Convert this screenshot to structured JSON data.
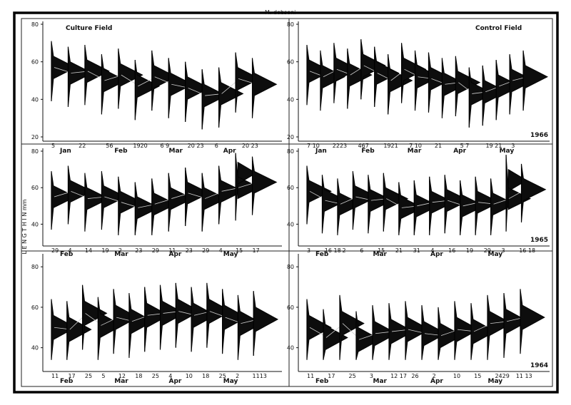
{
  "figure": {
    "title": "M. dobsoni",
    "field_labels": [
      "Culture Field",
      "Control Field"
    ],
    "y_axis_label": "L E N G T H   I N   mm"
  },
  "chart_data": [
    {
      "type": "area",
      "panel": "culture-1966",
      "heading": "Culture Field",
      "year": "",
      "ylim": [
        20,
        80
      ],
      "y_ticks": [
        20,
        40,
        60,
        80
      ],
      "date_labels": [
        "5",
        "22",
        "56",
        "1920",
        "6 9",
        "20 23",
        "6",
        "20 23"
      ],
      "months": [
        "Jan",
        "Feb",
        "Mar",
        "Apr"
      ],
      "series": [
        {
          "x": "5 Jan",
          "modes": [
            57
          ]
        },
        {
          "x": "22 Jan",
          "modes": [
            54
          ]
        },
        {
          "x": "5 Feb",
          "modes": [
            55
          ]
        },
        {
          "x": "6 Feb",
          "modes": [
            50
          ]
        },
        {
          "x": "19 Feb",
          "modes": [
            53
          ]
        },
        {
          "x": "20 Feb",
          "modes": [
            47
          ]
        },
        {
          "x": "6 Mar",
          "modes": [
            52
          ]
        },
        {
          "x": "9 Mar",
          "modes": [
            48
          ]
        },
        {
          "x": "20 Mar",
          "modes": [
            46
          ]
        },
        {
          "x": "23 Mar",
          "modes": [
            42
          ]
        },
        {
          "x": "6 Apr",
          "modes": [
            43
          ]
        },
        {
          "x": "20 Apr",
          "modes": [
            51
          ]
        },
        {
          "x": "23 Apr",
          "modes": [
            48
          ]
        }
      ]
    },
    {
      "type": "area",
      "panel": "control-1966",
      "heading": "Control Field",
      "year": "1966",
      "ylim": [
        20,
        80
      ],
      "y_ticks": [
        20,
        40,
        60,
        80
      ],
      "date_labels": [
        "7 10",
        "2223",
        "467",
        "1921",
        "7 10",
        "21",
        "5 7",
        "19 21",
        "3"
      ],
      "months": [
        "Jan",
        "Feb",
        "Mar",
        "Apr",
        "May"
      ],
      "series": [
        {
          "x": "7 Jan",
          "modes": [
            55
          ]
        },
        {
          "x": "10 Jan",
          "modes": [
            52
          ]
        },
        {
          "x": "22 Jan",
          "modes": [
            56
          ]
        },
        {
          "x": "23 Jan",
          "modes": [
            53
          ]
        },
        {
          "x": "4 Feb",
          "modes": [
            58
          ]
        },
        {
          "x": "6 Feb",
          "modes": [
            54
          ]
        },
        {
          "x": "7 Feb",
          "modes": [
            50
          ]
        },
        {
          "x": "19 Feb",
          "modes": [
            56
          ]
        },
        {
          "x": "21 Feb",
          "modes": [
            52
          ]
        },
        {
          "x": "7 Mar",
          "modes": [
            51
          ]
        },
        {
          "x": "10 Mar",
          "modes": [
            48
          ]
        },
        {
          "x": "21 Mar",
          "modes": [
            49
          ]
        },
        {
          "x": "5 Apr",
          "modes": [
            43
          ]
        },
        {
          "x": "7 Apr",
          "modes": [
            44
          ]
        },
        {
          "x": "19 Apr",
          "modes": [
            47
          ]
        },
        {
          "x": "21 Apr",
          "modes": [
            50
          ]
        },
        {
          "x": "3 May",
          "modes": [
            52
          ]
        }
      ]
    },
    {
      "type": "area",
      "panel": "culture-1965",
      "heading": "",
      "year": "",
      "ylim": [
        30,
        80
      ],
      "y_ticks": [
        40,
        60,
        80
      ],
      "date_labels": [
        "29",
        "4",
        "14",
        "19",
        "2",
        "23",
        "29",
        "11",
        "23",
        "29",
        "4",
        "15",
        "17"
      ],
      "months": [
        "Feb",
        "Mar",
        "Apr",
        "May"
      ],
      "series": [
        {
          "x": "29 Jan",
          "modes": [
            55
          ]
        },
        {
          "x": "4 Feb",
          "modes": [
            58
          ]
        },
        {
          "x": "14 Feb",
          "modes": [
            54
          ]
        },
        {
          "x": "19 Feb",
          "modes": [
            55
          ]
        },
        {
          "x": "2 Mar",
          "modes": [
            52
          ]
        },
        {
          "x": "23 Mar",
          "modes": [
            49
          ]
        },
        {
          "x": "29 Mar",
          "modes": [
            51
          ]
        },
        {
          "x": "11 Apr",
          "modes": [
            54
          ]
        },
        {
          "x": "23 Apr",
          "modes": [
            57
          ]
        },
        {
          "x": "29 Apr",
          "modes": [
            54
          ]
        },
        {
          "x": "4 May",
          "modes": [
            58
          ]
        },
        {
          "x": "15 May",
          "modes": [
            60,
            68
          ]
        },
        {
          "x": "17 May",
          "modes": [
            63
          ]
        }
      ]
    },
    {
      "type": "area",
      "panel": "control-1965",
      "heading": "",
      "year": "1965",
      "ylim": [
        30,
        80
      ],
      "y_ticks": [
        40,
        60,
        80
      ],
      "date_labels": [
        "3",
        "16 18",
        "2",
        "6",
        "15",
        "21",
        "31",
        "4",
        "16",
        "19",
        "29",
        "3",
        "16 18"
      ],
      "months": [
        "Feb",
        "Mar",
        "Apr",
        "May"
      ],
      "series": [
        {
          "x": "3 Feb",
          "modes": [
            58
          ]
        },
        {
          "x": "16 Feb",
          "modes": [
            53
          ]
        },
        {
          "x": "18 Feb",
          "modes": [
            51
          ]
        },
        {
          "x": "2 Mar",
          "modes": [
            55
          ]
        },
        {
          "x": "6 Mar",
          "modes": [
            53
          ]
        },
        {
          "x": "15 Mar",
          "modes": [
            54
          ]
        },
        {
          "x": "21 Mar",
          "modes": [
            49
          ]
        },
        {
          "x": "31 Mar",
          "modes": [
            50
          ]
        },
        {
          "x": "4 Apr",
          "modes": [
            52
          ]
        },
        {
          "x": "16 Apr",
          "modes": [
            53
          ]
        },
        {
          "x": "19 Apr",
          "modes": [
            50
          ]
        },
        {
          "x": "29 Apr",
          "modes": [
            52
          ]
        },
        {
          "x": "3 May",
          "modes": [
            51
          ]
        },
        {
          "x": "16 May",
          "modes": [
            54,
            64
          ]
        },
        {
          "x": "18 May",
          "modes": [
            59
          ]
        }
      ]
    },
    {
      "type": "area",
      "panel": "culture-1964",
      "heading": "",
      "year": "",
      "ylim": [
        30,
        85
      ],
      "y_ticks": [
        40,
        60,
        80
      ],
      "date_labels": [
        "11",
        "17",
        "25",
        "5",
        "12",
        "18",
        "25",
        "4",
        "10",
        "18",
        "25",
        "2",
        "1113"
      ],
      "months": [
        "Feb",
        "Mar",
        "Apr",
        "May"
      ],
      "series": [
        {
          "x": "11 Feb",
          "modes": [
            50
          ]
        },
        {
          "x": "17 Feb",
          "modes": [
            49
          ]
        },
        {
          "x": "25 Feb",
          "modes": [
            57
          ]
        },
        {
          "x": "5 Mar",
          "modes": [
            51
          ]
        },
        {
          "x": "12 Mar",
          "modes": [
            55
          ]
        },
        {
          "x": "18 Mar",
          "modes": [
            53
          ]
        },
        {
          "x": "25 Mar",
          "modes": [
            56
          ]
        },
        {
          "x": "4 Apr",
          "modes": [
            57
          ]
        },
        {
          "x": "10 Apr",
          "modes": [
            58
          ]
        },
        {
          "x": "18 Apr",
          "modes": [
            56
          ]
        },
        {
          "x": "25 Apr",
          "modes": [
            58
          ]
        },
        {
          "x": "2 May",
          "modes": [
            55
          ]
        },
        {
          "x": "11 May",
          "modes": [
            52
          ]
        },
        {
          "x": "13 May",
          "modes": [
            54
          ]
        }
      ]
    },
    {
      "type": "area",
      "panel": "control-1964",
      "heading": "",
      "year": "1964",
      "ylim": [
        30,
        85
      ],
      "y_ticks": [
        40,
        60,
        80
      ],
      "date_labels": [
        "11",
        "17",
        "25",
        "3",
        "12 17",
        "26",
        "2",
        "10",
        "15",
        "2429",
        "11 13"
      ],
      "months": [
        "Feb",
        "Mar",
        "Apr",
        "May"
      ],
      "series": [
        {
          "x": "11 Feb",
          "modes": [
            50
          ]
        },
        {
          "x": "17 Feb",
          "modes": [
            45
          ]
        },
        {
          "x": "25 Feb",
          "modes": [
            52
          ]
        },
        {
          "x": "3 Mar",
          "modes": [
            44
          ]
        },
        {
          "x": "12 Mar",
          "modes": [
            47
          ]
        },
        {
          "x": "17 Mar",
          "modes": [
            48
          ]
        },
        {
          "x": "26 Mar",
          "modes": [
            49
          ]
        },
        {
          "x": "2 Apr",
          "modes": [
            47
          ]
        },
        {
          "x": "10 Apr",
          "modes": [
            46
          ]
        },
        {
          "x": "15 Apr",
          "modes": [
            49
          ]
        },
        {
          "x": "24 Apr",
          "modes": [
            48
          ]
        },
        {
          "x": "29 Apr",
          "modes": [
            52
          ]
        },
        {
          "x": "11 May",
          "modes": [
            53
          ]
        },
        {
          "x": "13 May",
          "modes": [
            55
          ]
        }
      ]
    }
  ]
}
